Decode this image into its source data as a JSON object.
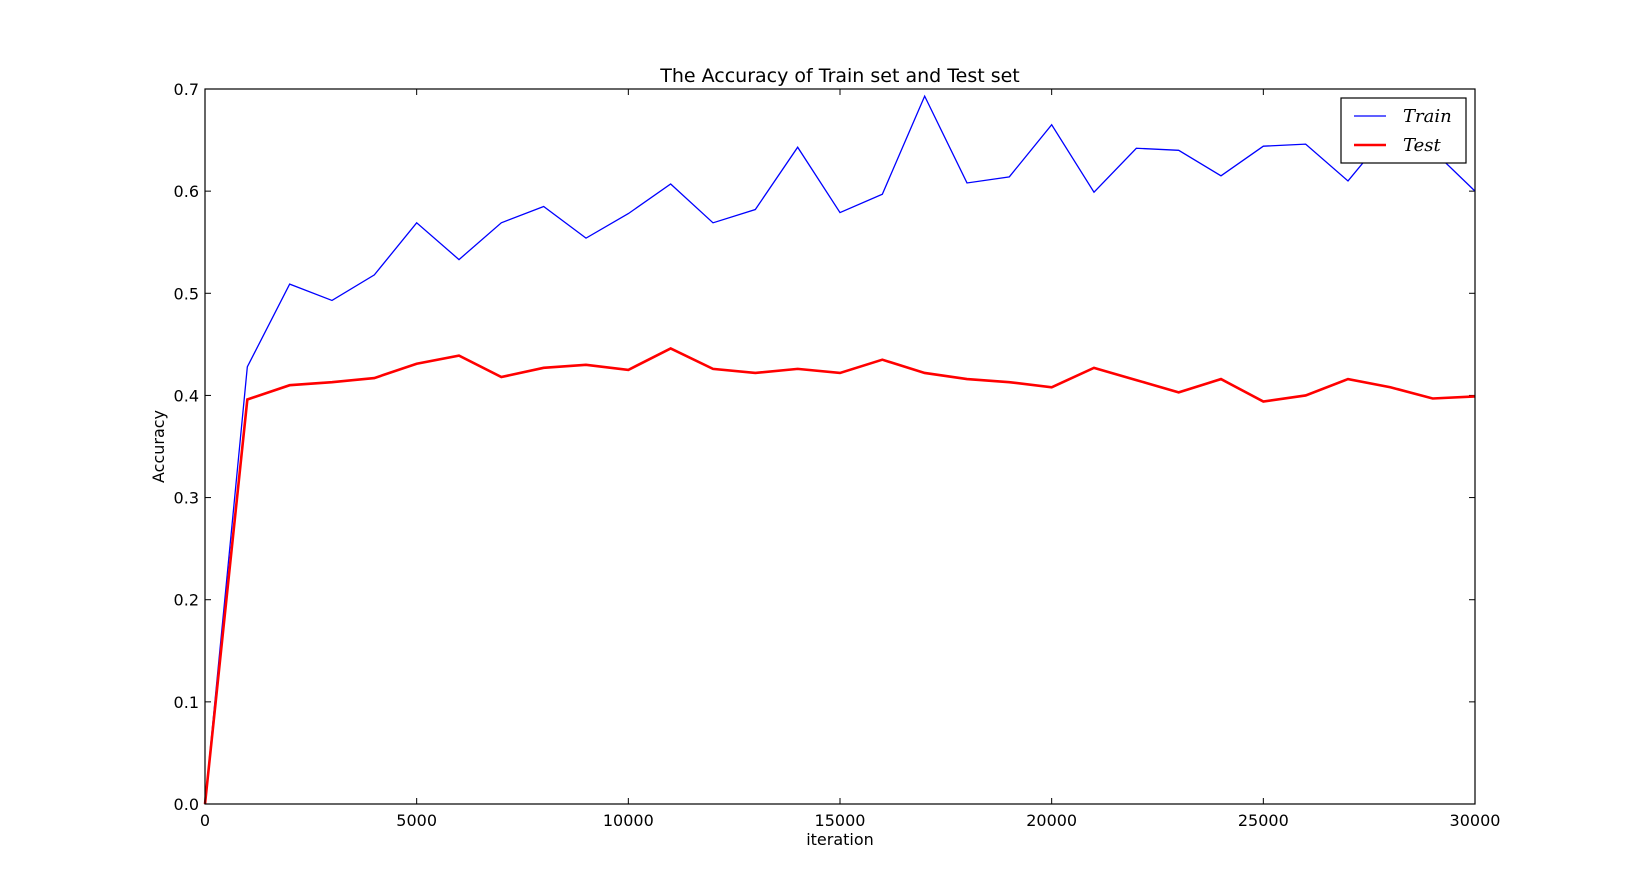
{
  "chart_data": {
    "type": "line",
    "title": "The Accuracy of Train set and Test set",
    "xlabel": "iteration",
    "ylabel": "Accuracy",
    "xlim": [
      0,
      30000
    ],
    "ylim": [
      0.0,
      0.7
    ],
    "xticks": [
      0,
      5000,
      10000,
      15000,
      20000,
      25000,
      30000
    ],
    "xtick_labels": [
      "0",
      "5000",
      "10000",
      "15000",
      "20000",
      "25000",
      "30000"
    ],
    "yticks": [
      0.0,
      0.1,
      0.2,
      0.3,
      0.4,
      0.5,
      0.6,
      0.7
    ],
    "ytick_labels": [
      "0.0",
      "0.1",
      "0.2",
      "0.3",
      "0.4",
      "0.5",
      "0.6",
      "0.7"
    ],
    "grid": false,
    "legend_position": "top-right",
    "x": [
      0,
      1000,
      2000,
      3000,
      4000,
      5000,
      6000,
      7000,
      8000,
      9000,
      10000,
      11000,
      12000,
      13000,
      14000,
      15000,
      16000,
      17000,
      18000,
      19000,
      20000,
      21000,
      22000,
      23000,
      24000,
      25000,
      26000,
      27000,
      28000,
      29000,
      30000
    ],
    "series": [
      {
        "name": "Train",
        "color": "#0000ff",
        "line_width": "thin",
        "values": [
          0.0,
          0.428,
          0.509,
          0.493,
          0.518,
          0.569,
          0.533,
          0.569,
          0.585,
          0.554,
          0.578,
          0.607,
          0.569,
          0.582,
          0.643,
          0.579,
          0.597,
          0.693,
          0.608,
          0.614,
          0.665,
          0.599,
          0.642,
          0.64,
          0.615,
          0.644,
          0.646,
          0.61,
          0.66,
          0.64,
          0.6
        ]
      },
      {
        "name": "Test",
        "color": "#ff0000",
        "line_width": "thick",
        "values": [
          0.0,
          0.396,
          0.41,
          0.413,
          0.417,
          0.431,
          0.439,
          0.418,
          0.427,
          0.43,
          0.425,
          0.446,
          0.426,
          0.422,
          0.426,
          0.422,
          0.435,
          0.422,
          0.416,
          0.413,
          0.408,
          0.427,
          0.415,
          0.403,
          0.416,
          0.394,
          0.4,
          0.416,
          0.408,
          0.397,
          0.399
        ]
      }
    ]
  }
}
